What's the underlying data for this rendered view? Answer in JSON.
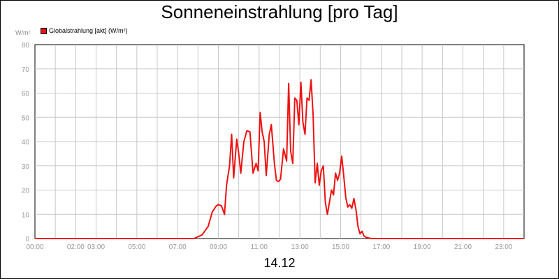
{
  "chart_data": {
    "type": "line",
    "title": "Sonneneinstrahlung [pro Tag]",
    "ylabel": "W/m²",
    "xlabel": "14.12",
    "ylim": [
      0,
      80
    ],
    "xlim": [
      0,
      24
    ],
    "yticks": [
      "0",
      "10",
      "20",
      "30",
      "40",
      "50",
      "60",
      "70",
      "80"
    ],
    "xticks": [
      {
        "x": 0,
        "label": "00:00"
      },
      {
        "x": 2,
        "label": "02:00"
      },
      {
        "x": 3,
        "label": "03:00"
      },
      {
        "x": 5,
        "label": "05:00"
      },
      {
        "x": 7,
        "label": "07:00"
      },
      {
        "x": 9,
        "label": "09:00"
      },
      {
        "x": 11,
        "label": "11:00"
      },
      {
        "x": 13,
        "label": "13:00"
      },
      {
        "x": 15,
        "label": "15:00"
      },
      {
        "x": 17,
        "label": "17:00"
      },
      {
        "x": 19,
        "label": "19:00"
      },
      {
        "x": 21,
        "label": "21:00"
      },
      {
        "x": 23,
        "label": "23:00"
      }
    ],
    "grid": true,
    "legend": "top-left",
    "series": [
      {
        "name": "Globalstrahlung [akt] (W/m²)",
        "color": "#ee1111",
        "x": [
          0,
          7.8,
          8.2,
          8.5,
          8.7,
          8.9,
          9.0,
          9.15,
          9.3,
          9.4,
          9.55,
          9.65,
          9.75,
          9.9,
          10.0,
          10.1,
          10.25,
          10.4,
          10.55,
          10.7,
          10.85,
          10.95,
          11.05,
          11.15,
          11.25,
          11.35,
          11.5,
          11.6,
          11.75,
          11.85,
          11.95,
          12.05,
          12.2,
          12.35,
          12.45,
          12.55,
          12.65,
          12.75,
          12.85,
          12.95,
          13.05,
          13.15,
          13.25,
          13.35,
          13.45,
          13.55,
          13.65,
          13.75,
          13.85,
          13.95,
          14.05,
          14.15,
          14.25,
          14.35,
          14.45,
          14.55,
          14.65,
          14.75,
          14.85,
          14.95,
          15.05,
          15.15,
          15.25,
          15.35,
          15.45,
          15.55,
          15.65,
          15.75,
          15.85,
          15.95,
          16.05,
          16.15,
          16.25,
          16.5,
          16.8,
          24
        ],
        "values": [
          0,
          0,
          1.5,
          5,
          11,
          13.5,
          14,
          13.5,
          10,
          22,
          30,
          43,
          25,
          41,
          35,
          27,
          40,
          44.5,
          44,
          27,
          31,
          28,
          52,
          44,
          40,
          26,
          43,
          47,
          31,
          24,
          23.5,
          24.5,
          37,
          32,
          64,
          36,
          31,
          58,
          57,
          47,
          64.5,
          48,
          43,
          58,
          57,
          65.5,
          51,
          23,
          31,
          22,
          28,
          30,
          15,
          10,
          15,
          20,
          18,
          27,
          24,
          27,
          34,
          26,
          17,
          13,
          14,
          12.5,
          16.5,
          12,
          5,
          2,
          3,
          1,
          0.5,
          0,
          0,
          0
        ]
      }
    ]
  }
}
